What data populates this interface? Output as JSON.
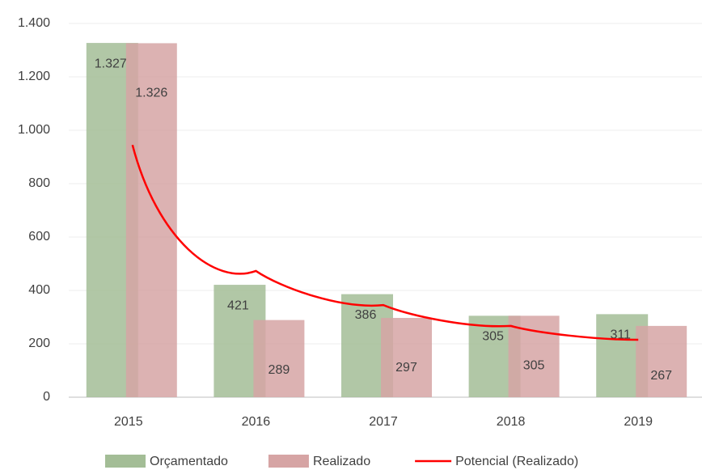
{
  "chart_data": {
    "type": "bar",
    "categories": [
      "2015",
      "2016",
      "2017",
      "2018",
      "2019"
    ],
    "series": [
      {
        "name": "Orçamentado",
        "color": "#a3bd96",
        "values": [
          1327,
          421,
          386,
          305,
          311
        ],
        "value_labels": [
          "1.327",
          "421",
          "386",
          "305",
          "311"
        ]
      },
      {
        "name": "Realizado",
        "color": "#d6a4a4",
        "values": [
          1326,
          289,
          297,
          305,
          267
        ],
        "value_labels": [
          "1.326",
          "289",
          "297",
          "305",
          "267"
        ]
      },
      {
        "name": "Potencial (Realizado)",
        "type": "line",
        "color": "#ff0000",
        "values": [
          945,
          473,
          345,
          267,
          215
        ]
      }
    ],
    "ylim": [
      0,
      1400
    ],
    "yticks": [
      0,
      200,
      400,
      600,
      800,
      {
        "value": 1000,
        "label": "1.000"
      },
      {
        "value": 1200,
        "label": "1.200"
      },
      {
        "value": 1400,
        "label": "1.400"
      }
    ],
    "grid": true,
    "legend": "bottom"
  }
}
